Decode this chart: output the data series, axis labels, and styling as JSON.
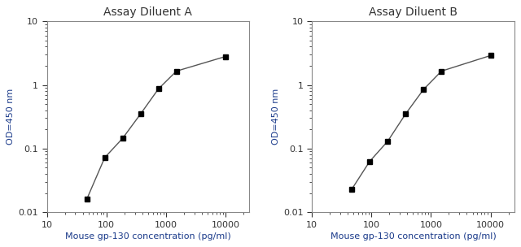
{
  "panel_A": {
    "title": "Assay Diluent A",
    "x": [
      46.875,
      93.75,
      187.5,
      375,
      750,
      1500,
      10000
    ],
    "y": [
      0.016,
      0.072,
      0.145,
      0.35,
      0.87,
      1.65,
      2.8
    ],
    "xlabel": "Mouse gp-130 concentration (pg/ml)",
    "ylabel": "OD=450 nm"
  },
  "panel_B": {
    "title": "Assay Diluent B",
    "x": [
      46.875,
      93.75,
      187.5,
      375,
      750,
      1500,
      10000
    ],
    "y": [
      0.023,
      0.063,
      0.13,
      0.35,
      0.85,
      1.65,
      2.9
    ],
    "xlabel": "Mouse gp-130 concentration (pg/ml)",
    "ylabel": "OD=450 nm"
  },
  "xlim": [
    10,
    25000
  ],
  "ylim": [
    0.01,
    10
  ],
  "line_color": "#555555",
  "marker": "s",
  "marker_color": "black",
  "marker_size": 4,
  "title_color": "#333333",
  "label_color": "#1a3a8a",
  "tick_label_color": "#333333",
  "spine_color": "#888888",
  "background_color": "#ffffff",
  "xticks": [
    10,
    100,
    1000,
    10000
  ],
  "yticks": [
    0.01,
    0.1,
    1,
    10
  ],
  "title_fontsize": 10,
  "label_fontsize": 8,
  "tick_fontsize": 8
}
